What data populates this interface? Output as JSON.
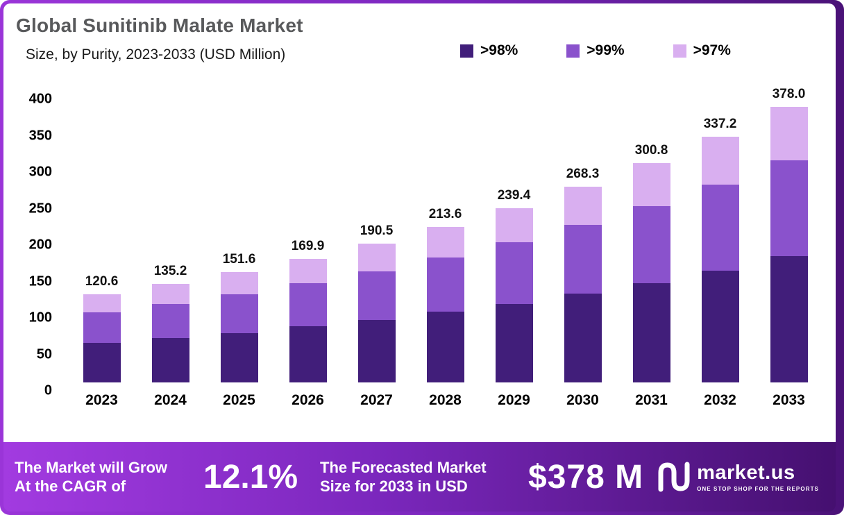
{
  "header": {
    "title": "Global Sunitinib Malate Market",
    "subtitle": "Size, by Purity, 2023-2033 (USD Million)"
  },
  "chart_data": {
    "type": "bar",
    "stacked": true,
    "title": "Global Sunitinib Malate Market Size, by Purity, 2023-2033 (USD Million)",
    "categories": [
      "2023",
      "2024",
      "2025",
      "2026",
      "2027",
      "2028",
      "2029",
      "2030",
      "2031",
      "2032",
      "2033"
    ],
    "series": [
      {
        "name": ">98%",
        "color": "#411e7a",
        "values": [
          54.0,
          61.0,
          68.0,
          77.0,
          86.0,
          97.0,
          108.0,
          122.0,
          136.0,
          153.0,
          173.0
        ]
      },
      {
        "name": ">99%",
        "color": "#8a52cc",
        "values": [
          42.5,
          47.0,
          53.0,
          59.0,
          66.0,
          74.0,
          84.0,
          94.0,
          106.0,
          118.0,
          132.0
        ]
      },
      {
        "name": ">97%",
        "color": "#d9aff0",
        "values": [
          24.1,
          27.2,
          30.6,
          33.9,
          38.5,
          42.6,
          47.4,
          52.3,
          58.8,
          66.2,
          73.0
        ]
      }
    ],
    "totals": [
      120.6,
      135.2,
      151.6,
      169.9,
      190.5,
      213.6,
      239.4,
      268.3,
      300.8,
      337.2,
      378.0
    ],
    "ylim": [
      0,
      400
    ],
    "yticks": [
      0,
      50,
      100,
      150,
      200,
      250,
      300,
      350,
      400
    ],
    "grid": false,
    "legend_position": "top-right"
  },
  "banner": {
    "cagr_line1": "The Market will Grow",
    "cagr_line2": "At the CAGR of",
    "cagr_value": "12.1%",
    "forecast_line1": "The Forecasted Market",
    "forecast_line2": "Size for 2033 in USD",
    "forecast_value": "$378 M",
    "brand": "market.us",
    "brand_tagline": "ONE STOP SHOP FOR THE REPORTS"
  }
}
